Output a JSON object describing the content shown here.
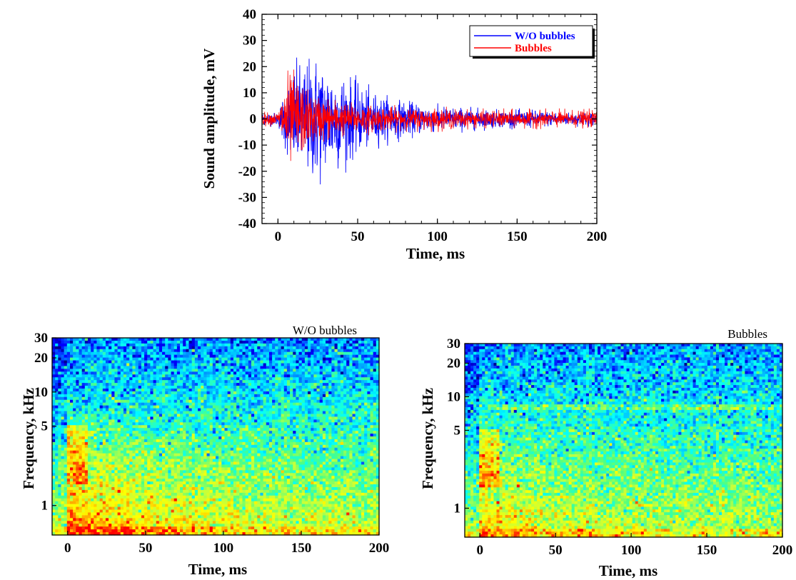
{
  "chart_data": [
    {
      "type": "line",
      "xlabel": "Time, ms",
      "ylabel": "Sound amplitude, mV",
      "xlim": [
        -10,
        200
      ],
      "ylim": [
        -40,
        40
      ],
      "xticks": [
        0,
        50,
        100,
        150,
        200
      ],
      "yticks": [
        -40,
        -30,
        -20,
        -10,
        0,
        10,
        20,
        30,
        40
      ],
      "legend_position": "top-right",
      "series": [
        {
          "name": "W/O bubbles",
          "color": "#0000ff",
          "envelope_time_ms": [
            -10,
            0,
            2,
            5,
            10,
            15,
            20,
            25,
            30,
            40,
            50,
            60,
            70,
            80,
            90,
            100,
            120,
            140,
            160,
            180,
            200
          ],
          "envelope_peak_mV": [
            3,
            3,
            8,
            16,
            24,
            26,
            28,
            30,
            26,
            22,
            16,
            12,
            10,
            8,
            7,
            6,
            5,
            4,
            4,
            3,
            3
          ]
        },
        {
          "name": "Bubbles",
          "color": "#ff0000",
          "envelope_time_ms": [
            -10,
            0,
            2,
            5,
            8,
            10,
            15,
            20,
            30,
            40,
            50,
            60,
            80,
            100,
            120,
            150,
            200
          ],
          "envelope_peak_mV": [
            3,
            3,
            10,
            20,
            22,
            21,
            17,
            12,
            10,
            8,
            7,
            6,
            5,
            5,
            4,
            4,
            4
          ]
        }
      ]
    },
    {
      "type": "heatmap",
      "title": "W/O bubbles",
      "xlabel": "Time, ms",
      "ylabel": "Frequency, kHz",
      "xlim": [
        -10,
        200
      ],
      "ylim": [
        0.55,
        30
      ],
      "yscale": "log",
      "xticks": [
        0,
        50,
        100,
        150,
        200
      ],
      "yticks": [
        1,
        5,
        10,
        20,
        30
      ],
      "colormap": [
        "#00008f",
        "#0000ff",
        "#00a0ff",
        "#00ffff",
        "#50ff80",
        "#c0ff40",
        "#ffff00",
        "#ffa000",
        "#ff0000"
      ]
    },
    {
      "type": "heatmap",
      "title": "Bubbles",
      "xlabel": "Time, ms",
      "ylabel": "Frequency, kHz",
      "xlim": [
        -10,
        200
      ],
      "ylim": [
        0.55,
        30
      ],
      "yscale": "log",
      "xticks": [
        0,
        50,
        100,
        150,
        200
      ],
      "yticks": [
        1,
        5,
        10,
        20,
        30
      ],
      "colormap": [
        "#00008f",
        "#0000ff",
        "#00a0ff",
        "#00ffff",
        "#50ff80",
        "#c0ff40",
        "#ffff00",
        "#ffa000",
        "#ff0000"
      ]
    }
  ]
}
